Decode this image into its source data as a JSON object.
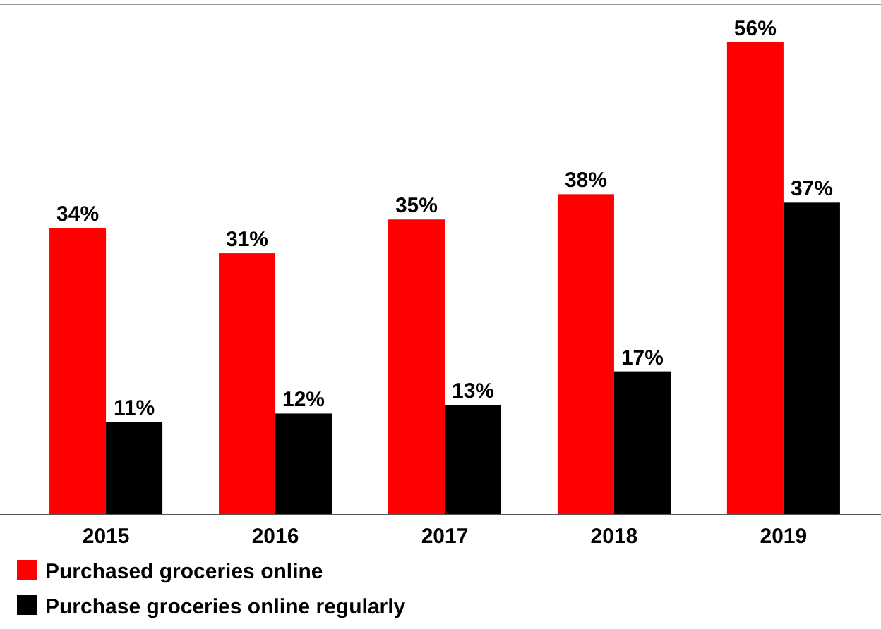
{
  "chart_data": {
    "type": "bar",
    "categories": [
      "2015",
      "2016",
      "2017",
      "2018",
      "2019"
    ],
    "series": [
      {
        "name": "Purchased groceries online",
        "color": "#ff0000",
        "values": [
          34,
          31,
          35,
          38,
          56
        ],
        "value_labels": [
          "34%",
          "31%",
          "35%",
          "38%",
          "56%"
        ]
      },
      {
        "name": "Purchase groceries online regularly",
        "color": "#000000",
        "values": [
          11,
          12,
          13,
          17,
          37
        ],
        "value_labels": [
          "11%",
          "12%",
          "13%",
          "17%",
          "37%"
        ]
      }
    ],
    "legend": "bottom",
    "grid": false
  }
}
